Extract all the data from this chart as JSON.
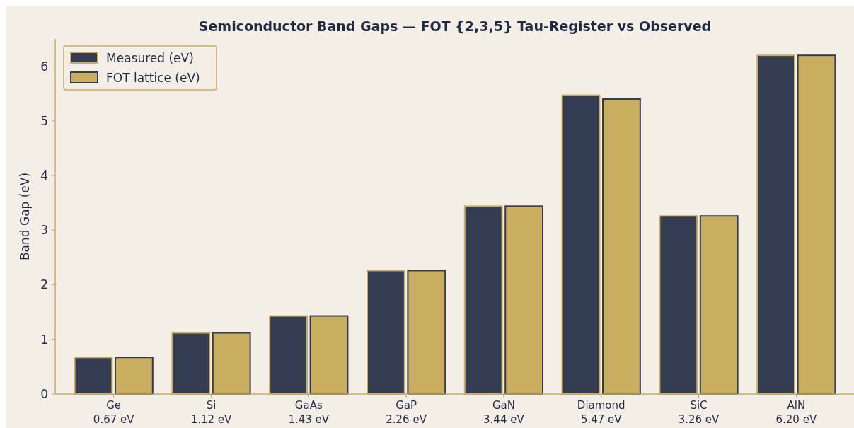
{
  "chart_data": {
    "type": "bar",
    "title": "Semiconductor Band Gaps — FOT {2,3,5} Tau-Register vs Observed",
    "ylabel": "Band Gap (eV)",
    "categories": [
      "Ge\n0.67 eV",
      "Si\n1.12 eV",
      "GaAs\n1.43 eV",
      "GaP\n2.26 eV",
      "GaN\n3.44 eV",
      "Diamond\n5.47 eV",
      "SiC\n3.26 eV",
      "AlN\n6.20 eV"
    ],
    "series": [
      {
        "name": "Measured (eV)",
        "color": "#343c52",
        "values": [
          0.67,
          1.12,
          1.43,
          2.26,
          3.44,
          5.47,
          3.26,
          6.2
        ]
      },
      {
        "name": "FOT lattice (eV)",
        "color": "#c9ae5f",
        "values": [
          0.67,
          1.12,
          1.43,
          2.26,
          3.44,
          5.4,
          3.26,
          6.2
        ]
      }
    ],
    "ylim": [
      0,
      6.5
    ],
    "yticks": [
      0,
      1,
      2,
      3,
      4,
      5,
      6
    ],
    "grid": false,
    "legend": "top left"
  }
}
